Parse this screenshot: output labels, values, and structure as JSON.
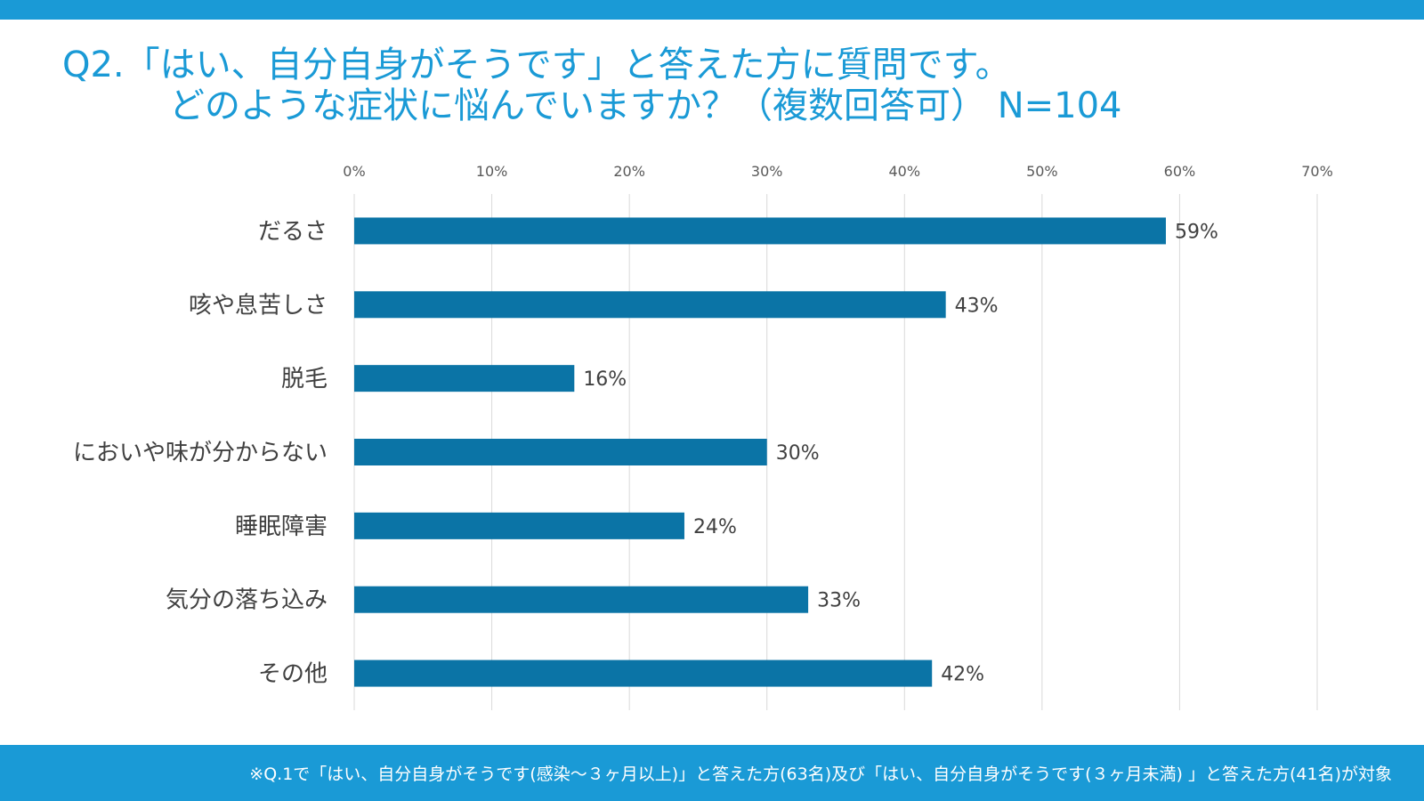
{
  "header": {
    "title_line1": "Q2.「はい、自分自身がそうです」と答えた方に質問です。",
    "title_line2": "どのような症状に悩んでいますか？（複数回答可） N=104"
  },
  "footer": {
    "note": "※Q.1で「はい、自分自身がそうです(感染～３ヶ月以上)」と答えた方(63名)及び「はい、自分自身がそうです(３ヶ月未満) 」と答えた方(41名)が対象"
  },
  "colors": {
    "accent": "#1a9ad6",
    "bar": "#0b74a6",
    "grid": "#d9d9d9",
    "text": "#404040"
  },
  "chart_data": {
    "type": "bar",
    "orientation": "horizontal",
    "categories": [
      "だるさ",
      "咳や息苦しさ",
      "脱毛",
      "においや味が分からない",
      "睡眠障害",
      "気分の落ち込み",
      "その他"
    ],
    "values": [
      59,
      43,
      16,
      30,
      24,
      33,
      42
    ],
    "data_labels": [
      "59%",
      "43%",
      "16%",
      "30%",
      "24%",
      "33%",
      "42%"
    ],
    "xlim": [
      0,
      70
    ],
    "x_ticks": [
      0,
      10,
      20,
      30,
      40,
      50,
      60,
      70
    ],
    "x_tick_labels": [
      "0%",
      "10%",
      "20%",
      "30%",
      "40%",
      "50%",
      "60%",
      "70%"
    ],
    "axis_position": "top",
    "grid": true,
    "title": "",
    "xlabel": "",
    "ylabel": ""
  }
}
